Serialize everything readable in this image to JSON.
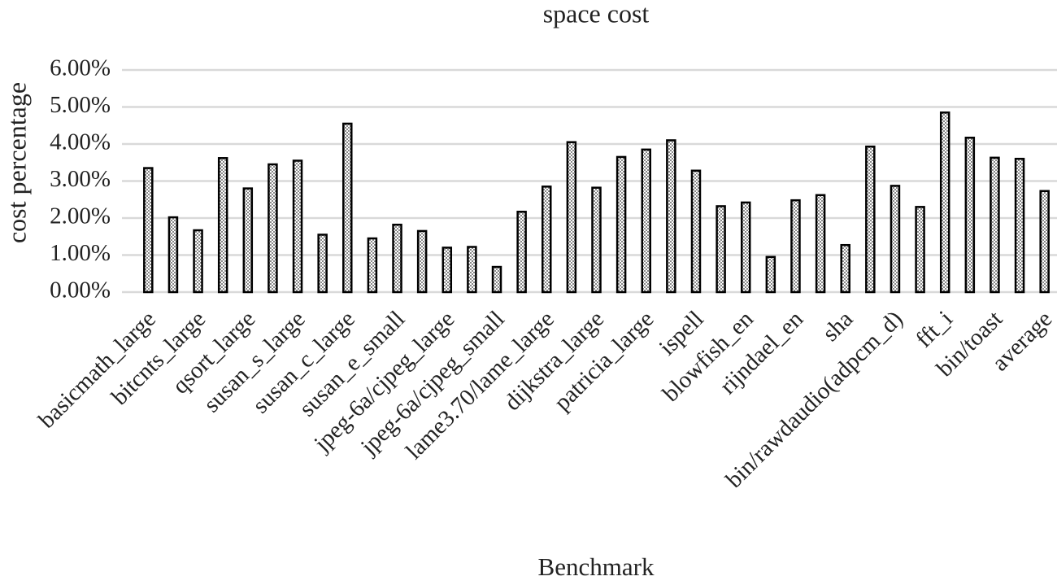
{
  "chart_data": {
    "type": "bar",
    "title": "space cost",
    "x_label": "Benchmark",
    "y_label": "cost percentage",
    "categories": [
      "basicmath_large",
      null,
      "bitcnts_large",
      null,
      "qsort_large",
      null,
      "susan_s_large",
      null,
      "susan_c_large",
      null,
      "susan_e_small",
      null,
      "jpeg-6a/cjpeg_large",
      null,
      "jpeg-6a/cjpeg_small",
      null,
      "lame3.70/lame_large",
      null,
      "dijkstra_large",
      null,
      "patricia_large",
      null,
      "ispell",
      null,
      "blowfish_en",
      null,
      "rijndael_en",
      null,
      "sha",
      null,
      "bin/rawdaudio(adpcm_d)",
      null,
      "fft_i",
      null,
      "bin/toast",
      null,
      "average"
    ],
    "values": [
      3.35,
      2.02,
      1.67,
      3.62,
      2.8,
      3.45,
      3.55,
      1.55,
      4.55,
      1.45,
      1.82,
      1.65,
      1.2,
      1.22,
      0.68,
      2.17,
      2.85,
      4.05,
      2.82,
      3.65,
      3.85,
      4.1,
      3.28,
      2.32,
      2.42,
      0.95,
      2.48,
      2.62,
      1.27,
      3.93,
      2.87,
      2.3,
      4.85,
      4.17,
      3.63,
      3.6,
      2.73
    ],
    "color": "#000000",
    "ylim": [
      0,
      6
    ],
    "yticks": [
      {
        "value": 0,
        "label": "0.00%"
      },
      {
        "value": 1,
        "label": "1.00%"
      },
      {
        "value": 2,
        "label": "2.00%"
      },
      {
        "value": 3,
        "label": "3.00%"
      },
      {
        "value": 4,
        "label": "4.00%"
      },
      {
        "value": 5,
        "label": "5.00%"
      },
      {
        "value": 6,
        "label": "6.00%"
      }
    ],
    "grid": true
  }
}
